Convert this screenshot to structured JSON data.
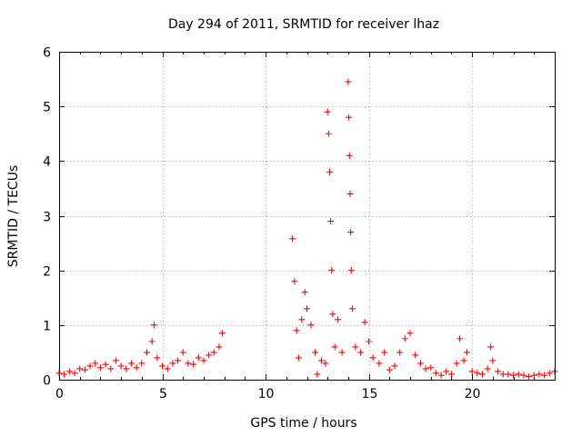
{
  "chart_data": {
    "type": "scatter",
    "title": "Day 294 of 2011, SRMTID for receiver lhaz",
    "xlabel": "GPS time / hours",
    "ylabel": "SRMTID / TECUs",
    "xlim": [
      0,
      24
    ],
    "ylim": [
      0,
      6
    ],
    "x_ticks": [
      0,
      5,
      10,
      15,
      20
    ],
    "y_ticks": [
      0,
      1,
      2,
      3,
      4,
      5,
      6
    ],
    "x_tick_labels": [
      "0",
      "5",
      "10",
      "15",
      "20"
    ],
    "y_tick_labels": [
      "0",
      "1",
      "2",
      "3",
      "4",
      "5",
      "6"
    ],
    "grid": true,
    "marker": "+",
    "series": [
      {
        "name": "SRMTID",
        "color": "#ff0000",
        "points": [
          [
            0.0,
            0.12
          ],
          [
            0.25,
            0.1
          ],
          [
            0.5,
            0.15
          ],
          [
            0.75,
            0.12
          ],
          [
            1.0,
            0.2
          ],
          [
            1.25,
            0.18
          ],
          [
            1.5,
            0.25
          ],
          [
            1.75,
            0.3
          ],
          [
            2.0,
            0.22
          ],
          [
            2.25,
            0.28
          ],
          [
            2.5,
            0.2
          ],
          [
            2.75,
            0.35
          ],
          [
            3.0,
            0.25
          ],
          [
            3.25,
            0.2
          ],
          [
            3.5,
            0.3
          ],
          [
            3.75,
            0.22
          ],
          [
            4.0,
            0.3
          ],
          [
            4.25,
            0.5
          ],
          [
            4.5,
            0.7
          ],
          [
            4.6,
            1.0
          ],
          [
            4.75,
            0.4
          ],
          [
            5.0,
            0.25
          ],
          [
            5.25,
            0.2
          ],
          [
            5.5,
            0.3
          ],
          [
            5.75,
            0.35
          ],
          [
            6.0,
            0.5
          ],
          [
            6.25,
            0.3
          ],
          [
            6.5,
            0.28
          ],
          [
            6.75,
            0.4
          ],
          [
            7.0,
            0.35
          ],
          [
            7.25,
            0.45
          ],
          [
            7.5,
            0.5
          ],
          [
            7.75,
            0.6
          ],
          [
            7.9,
            0.85
          ],
          [
            11.3,
            2.58
          ],
          [
            11.4,
            1.8
          ],
          [
            11.5,
            0.9
          ],
          [
            11.6,
            0.4
          ],
          [
            11.75,
            1.1
          ],
          [
            11.9,
            1.6
          ],
          [
            12.0,
            1.3
          ],
          [
            12.2,
            1.0
          ],
          [
            12.4,
            0.5
          ],
          [
            12.5,
            0.1
          ],
          [
            12.7,
            0.35
          ],
          [
            12.9,
            0.3
          ],
          [
            13.0,
            4.9
          ],
          [
            13.05,
            4.5
          ],
          [
            13.1,
            3.8
          ],
          [
            13.15,
            2.9
          ],
          [
            13.2,
            2.0
          ],
          [
            13.25,
            1.2
          ],
          [
            13.35,
            0.6
          ],
          [
            13.5,
            1.1
          ],
          [
            13.7,
            0.5
          ],
          [
            14.0,
            5.45
          ],
          [
            14.03,
            4.8
          ],
          [
            14.06,
            4.1
          ],
          [
            14.09,
            3.4
          ],
          [
            14.12,
            2.7
          ],
          [
            14.15,
            2.0
          ],
          [
            14.2,
            1.3
          ],
          [
            14.35,
            0.6
          ],
          [
            14.6,
            0.5
          ],
          [
            14.8,
            1.05
          ],
          [
            15.0,
            0.7
          ],
          [
            15.2,
            0.4
          ],
          [
            15.5,
            0.3
          ],
          [
            15.75,
            0.5
          ],
          [
            16.0,
            0.18
          ],
          [
            16.25,
            0.25
          ],
          [
            16.5,
            0.5
          ],
          [
            16.75,
            0.75
          ],
          [
            17.0,
            0.85
          ],
          [
            17.25,
            0.45
          ],
          [
            17.5,
            0.3
          ],
          [
            17.75,
            0.2
          ],
          [
            18.0,
            0.22
          ],
          [
            18.25,
            0.12
          ],
          [
            18.5,
            0.08
          ],
          [
            18.75,
            0.15
          ],
          [
            19.0,
            0.1
          ],
          [
            19.25,
            0.3
          ],
          [
            19.4,
            0.75
          ],
          [
            19.6,
            0.35
          ],
          [
            19.75,
            0.5
          ],
          [
            20.0,
            0.15
          ],
          [
            20.25,
            0.12
          ],
          [
            20.5,
            0.1
          ],
          [
            20.75,
            0.2
          ],
          [
            20.9,
            0.6
          ],
          [
            21.0,
            0.35
          ],
          [
            21.25,
            0.15
          ],
          [
            21.5,
            0.1
          ],
          [
            21.75,
            0.1
          ],
          [
            22.0,
            0.08
          ],
          [
            22.25,
            0.1
          ],
          [
            22.5,
            0.08
          ],
          [
            22.75,
            0.06
          ],
          [
            23.0,
            0.08
          ],
          [
            23.25,
            0.1
          ],
          [
            23.5,
            0.08
          ],
          [
            23.75,
            0.12
          ],
          [
            24.0,
            0.15
          ]
        ]
      }
    ]
  }
}
